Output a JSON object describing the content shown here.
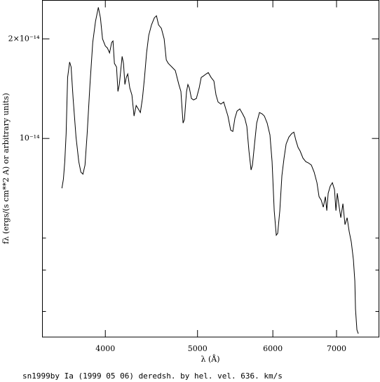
{
  "chart_data": {
    "type": "line",
    "title": "sn1999by Ia (1999 05 06) deredsh. by hel. vel.   636. km/s",
    "x_label": "λ (Å)",
    "y_label": "fλ (ergs/(s cm**2 A) or arbitrary units)",
    "x_scale": "log",
    "y_scale": "log",
    "color": "#000000",
    "xlim": [
      3435,
      7757
    ],
    "ylim": [
      2.51e-15,
      2.615e-14
    ],
    "xticks": [
      4000,
      5000,
      6000,
      7000
    ],
    "yticks": [
      {
        "value": 1e-14,
        "label": "10⁻¹⁴"
      },
      {
        "value": 2e-14,
        "label": "2×10⁻¹⁴"
      }
    ],
    "yminor_ticks": [
      3e-15,
      4e-15,
      5e-15
    ],
    "x": [
      3601,
      3614,
      3626,
      3638,
      3651,
      3669,
      3682,
      3700,
      3726,
      3751,
      3770,
      3789,
      3808,
      3828,
      3854,
      3880,
      3906,
      3933,
      3953,
      3973,
      4000,
      4020,
      4041,
      4062,
      4075,
      4089,
      4110,
      4124,
      4138,
      4152,
      4166,
      4180,
      4194,
      4208,
      4223,
      4244,
      4266,
      4288,
      4310,
      4332,
      4354,
      4376,
      4398,
      4420,
      4443,
      4473,
      4504,
      4527,
      4550,
      4581,
      4612,
      4636,
      4659,
      4699,
      4738,
      4779,
      4803,
      4828,
      4844,
      4869,
      4885,
      4902,
      4927,
      4952,
      4986,
      5020,
      5045,
      5071,
      5106,
      5132,
      5167,
      5202,
      5229,
      5255,
      5291,
      5327,
      5354,
      5382,
      5418,
      5446,
      5474,
      5502,
      5539,
      5577,
      5606,
      5634,
      5663,
      5692,
      5711,
      5740,
      5770,
      5809,
      5848,
      5878,
      5918,
      5958,
      5989,
      6020,
      6050,
      6071,
      6102,
      6133,
      6165,
      6196,
      6238,
      6281,
      6313,
      6345,
      6378,
      6410,
      6454,
      6498,
      6542,
      6586,
      6631,
      6676,
      6710,
      6745,
      6779,
      6814,
      6837,
      6860,
      6895,
      6930,
      6966,
      6990,
      7013,
      7037,
      7073,
      7109,
      7145,
      7182,
      7218,
      7255,
      7292,
      7317,
      7329,
      7354,
      7379
    ],
    "values": [
      7.07e-15,
      7.53e-15,
      8.51e-15,
      1.035e-14,
      1.529e-14,
      1.702e-14,
      1.645e-14,
      1.321e-14,
      1.01e-14,
      8.51e-15,
      7.91e-15,
      7.8e-15,
      8.31e-15,
      1.035e-14,
      1.456e-14,
      1.951e-14,
      2.259e-14,
      2.491e-14,
      2.315e-14,
      2e-14,
      1.904e-14,
      1.877e-14,
      1.814e-14,
      1.951e-14,
      1.971e-14,
      1.686e-14,
      1.645e-14,
      1.387e-14,
      1.456e-14,
      1.605e-14,
      1.77e-14,
      1.686e-14,
      1.456e-14,
      1.529e-14,
      1.567e-14,
      1.421e-14,
      1.353e-14,
      1.169e-14,
      1.258e-14,
      1.228e-14,
      1.198e-14,
      1.321e-14,
      1.529e-14,
      1.814e-14,
      2.049e-14,
      2.205e-14,
      2.315e-14,
      2.349e-14,
      2.205e-14,
      2.152e-14,
      2e-14,
      1.727e-14,
      1.686e-14,
      1.645e-14,
      1.605e-14,
      1.456e-14,
      1.387e-14,
      1.113e-14,
      1.141e-14,
      1.387e-14,
      1.456e-14,
      1.421e-14,
      1.321e-14,
      1.308e-14,
      1.321e-14,
      1.421e-14,
      1.529e-14,
      1.544e-14,
      1.567e-14,
      1.582e-14,
      1.529e-14,
      1.492e-14,
      1.353e-14,
      1.289e-14,
      1.27e-14,
      1.289e-14,
      1.228e-14,
      1.169e-14,
      1.06e-14,
      1.05e-14,
      1.152e-14,
      1.21e-14,
      1.228e-14,
      1.186e-14,
      1.152e-14,
      1.087e-14,
      9.16e-15,
      8.03e-15,
      8.31e-15,
      9.62e-15,
      1.113e-14,
      1.198e-14,
      1.186e-14,
      1.169e-14,
      1.113e-14,
      1.025e-14,
      8.51e-15,
      6.05e-15,
      5.1e-15,
      5.17e-15,
      6.05e-15,
      7.72e-15,
      8.72e-15,
      9.62e-15,
      1.01e-14,
      1.035e-14,
      1.045e-14,
      9.86e-15,
      9.39e-15,
      9.16e-15,
      8.72e-15,
      8.51e-15,
      8.43e-15,
      8.31e-15,
      7.91e-15,
      7.35e-15,
      6.67e-15,
      6.51e-15,
      6.2e-15,
      6.67e-15,
      6.05e-15,
      6.83e-15,
      7.18e-15,
      7.35e-15,
      7e-15,
      6.05e-15,
      6.83e-15,
      6.35e-15,
      5.76e-15,
      6.35e-15,
      5.49e-15,
      5.76e-15,
      5.23e-15,
      4.86e-15,
      4.3e-15,
      3.71e-15,
      3.05e-15,
      2.64e-15,
      2.57e-15
    ]
  }
}
